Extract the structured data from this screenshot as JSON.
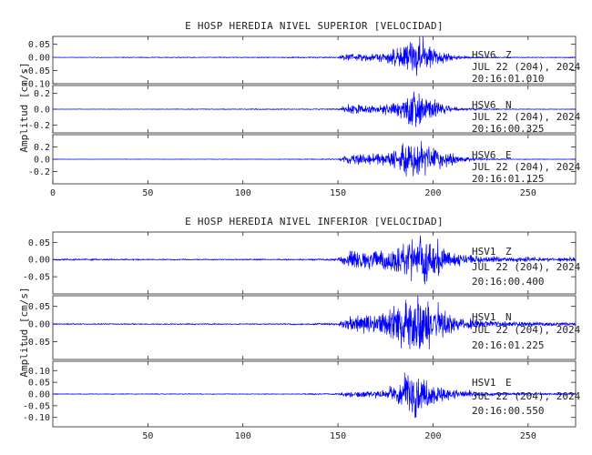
{
  "figure": {
    "trace_color": "#0000ff",
    "axis_color": "#222222"
  },
  "chart_data": [
    {
      "type": "line",
      "title": "E HOSP HEREDIA NIVEL SUPERIOR [VELOCIDAD]",
      "ylabel": "Amplitud [cm/s]",
      "xlabel": "",
      "xlim": [
        0,
        275
      ],
      "x_ticks": [
        0,
        50,
        100,
        150,
        200,
        250
      ],
      "x_tick_labels": [
        "0",
        "50",
        "100",
        "150",
        "200",
        "250"
      ],
      "grid": false,
      "panels": [
        {
          "station": "HSV6",
          "component": "Z",
          "date": "JUL 22 (204), 2024",
          "time": "20:16:01.010",
          "ylim": [
            -0.1,
            0.08
          ],
          "y_ticks": [
            0.05,
            0.0,
            -0.05,
            -0.1
          ],
          "y_tick_labels": [
            "0.05",
            "0.00",
            "-0.05",
            "-0.10"
          ],
          "envelope": {
            "times": [
              0,
              60,
              120,
              150,
              153,
              156,
              165,
              175,
              182,
              186,
              190,
              193,
              197,
              200,
              205,
              210,
              215,
              225,
              240,
              260,
              275
            ],
            "amplitudes": [
              0.001,
              0.002,
              0.002,
              0.003,
              0.012,
              0.02,
              0.015,
              0.02,
              0.04,
              0.055,
              0.075,
              0.08,
              0.06,
              0.045,
              0.03,
              0.012,
              0.006,
              0.003,
              0.002,
              0.002,
              0.002
            ]
          }
        },
        {
          "station": "HSV6",
          "component": "N",
          "date": "JUL 22 (204), 2024",
          "time": "20:16:00.325",
          "ylim": [
            -0.3,
            0.3
          ],
          "y_ticks": [
            0.2,
            0.0,
            -0.2
          ],
          "y_tick_labels": [
            "0.2",
            "0.0",
            "-0.2"
          ],
          "envelope": {
            "times": [
              0,
              60,
              120,
              130,
              150,
              153,
              156,
              165,
              175,
              182,
              186,
              190,
              193,
              197,
              200,
              205,
              210,
              215,
              225,
              240,
              260,
              275
            ],
            "amplitudes": [
              0.003,
              0.004,
              0.008,
              0.006,
              0.01,
              0.04,
              0.07,
              0.05,
              0.07,
              0.13,
              0.2,
              0.28,
              0.26,
              0.18,
              0.12,
              0.08,
              0.04,
              0.02,
              0.01,
              0.006,
              0.005,
              0.005
            ]
          }
        },
        {
          "station": "HSV6",
          "component": "E",
          "date": "JUL 22 (204), 2024",
          "time": "20:16:01.125",
          "ylim": [
            -0.4,
            0.4
          ],
          "y_ticks": [
            0.2,
            0.0,
            -0.2
          ],
          "y_tick_labels": [
            "0.2",
            "0.0",
            "-0.2"
          ],
          "envelope": {
            "times": [
              0,
              60,
              120,
              150,
              153,
              156,
              165,
              175,
              182,
              186,
              190,
              193,
              197,
              200,
              205,
              210,
              215,
              225,
              240,
              260,
              275
            ],
            "amplitudes": [
              0.003,
              0.004,
              0.006,
              0.01,
              0.06,
              0.1,
              0.08,
              0.1,
              0.2,
              0.3,
              0.38,
              0.3,
              0.24,
              0.25,
              0.18,
              0.1,
              0.05,
              0.02,
              0.008,
              0.006,
              0.006
            ]
          }
        }
      ]
    },
    {
      "type": "line",
      "title": "E HOSP HEREDIA NIVEL INFERIOR [VELOCIDAD]",
      "ylabel": "Amplitud [cm/s]",
      "xlabel": "",
      "xlim": [
        0,
        275
      ],
      "x_ticks": [
        50,
        100,
        150,
        200,
        250
      ],
      "x_tick_labels": [
        "50",
        "100",
        "150",
        "200",
        "250"
      ],
      "grid": false,
      "panels": [
        {
          "station": "HSV1",
          "component": "Z",
          "date": "JUL 22 (204), 2024",
          "time": "20:16:00.400",
          "ylim": [
            -0.1,
            0.08
          ],
          "y_ticks": [
            0.05,
            0.0,
            -0.05
          ],
          "y_tick_labels": [
            "0.05",
            "0.00",
            "-0.05"
          ],
          "envelope": {
            "times": [
              0,
              60,
              120,
              150,
              153,
              156,
              165,
              175,
              182,
              186,
              190,
              193,
              197,
              200,
              205,
              210,
              215,
              225,
              240,
              260,
              275
            ],
            "amplitudes": [
              0.003,
              0.002,
              0.002,
              0.004,
              0.02,
              0.028,
              0.03,
              0.035,
              0.05,
              0.07,
              0.085,
              0.09,
              0.075,
              0.06,
              0.045,
              0.03,
              0.02,
              0.012,
              0.008,
              0.006,
              0.006
            ]
          }
        },
        {
          "station": "HSV1",
          "component": "N",
          "date": "JUL 22 (204), 2024",
          "time": "20:16:01.225",
          "ylim": [
            -0.1,
            0.08
          ],
          "y_ticks": [
            0.05,
            0.0,
            -0.05
          ],
          "y_tick_labels": [
            "0.05",
            "0.00",
            "-0.05"
          ],
          "envelope": {
            "times": [
              0,
              60,
              120,
              150,
              153,
              156,
              165,
              175,
              182,
              186,
              190,
              193,
              197,
              200,
              205,
              210,
              215,
              225,
              240,
              260,
              275
            ],
            "amplitudes": [
              0.002,
              0.002,
              0.002,
              0.004,
              0.018,
              0.025,
              0.03,
              0.04,
              0.06,
              0.075,
              0.09,
              0.09,
              0.075,
              0.06,
              0.045,
              0.03,
              0.02,
              0.012,
              0.008,
              0.006,
              0.006
            ]
          }
        },
        {
          "station": "HSV1",
          "component": "E",
          "date": "JUL 22 (204), 2024",
          "time": "20:16:00.550",
          "ylim": [
            -0.14,
            0.14
          ],
          "y_ticks": [
            0.1,
            0.05,
            0.0,
            -0.05,
            -0.1
          ],
          "y_tick_labels": [
            "0.10",
            "0.05",
            "0.00",
            "-0.05",
            "-0.10"
          ],
          "envelope": {
            "times": [
              0,
              60,
              120,
              150,
              153,
              156,
              165,
              175,
              182,
              186,
              190,
              193,
              197,
              200,
              205,
              210,
              215,
              225,
              240,
              260,
              275
            ],
            "amplitudes": [
              0.002,
              0.002,
              0.002,
              0.004,
              0.012,
              0.015,
              0.015,
              0.02,
              0.05,
              0.1,
              0.13,
              0.09,
              0.06,
              0.045,
              0.035,
              0.025,
              0.018,
              0.01,
              0.006,
              0.005,
              0.005
            ]
          }
        }
      ]
    }
  ]
}
